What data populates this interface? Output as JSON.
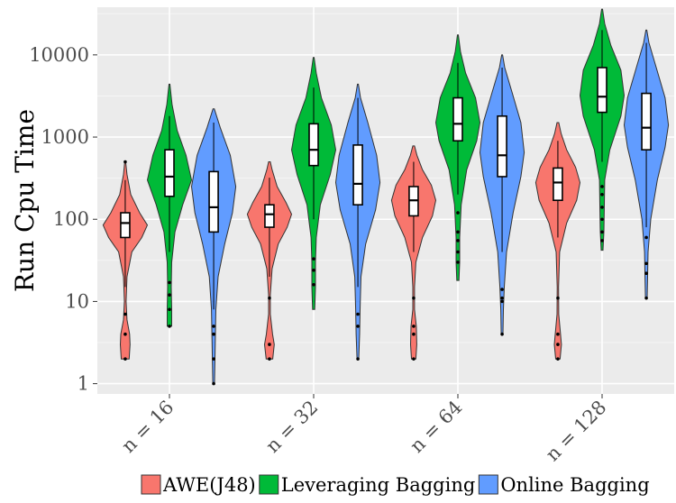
{
  "chart_data": {
    "type": "violin",
    "title": "",
    "xlabel": "",
    "ylabel": "Run Cpu Time",
    "y_scale": "log10",
    "ylim": [
      0.75,
      38000
    ],
    "y_ticks": [
      {
        "value": 1,
        "label": "1"
      },
      {
        "value": 10,
        "label": "10"
      },
      {
        "value": 100,
        "label": "100"
      },
      {
        "value": 1000,
        "label": "1000"
      },
      {
        "value": 10000,
        "label": "10000"
      }
    ],
    "categories": [
      "n = 16",
      "n = 32",
      "n = 64",
      "n = 128"
    ],
    "grid": true,
    "legend_position": "bottom",
    "series": [
      {
        "name": "AWE(J48)",
        "color": "#F8766D",
        "groups": [
          {
            "min": 2,
            "max": 500,
            "q1": 60,
            "median": 90,
            "q3": 120,
            "whisker_low": 15,
            "whisker_high": 300,
            "outliers": [
              2,
              4,
              7,
              500
            ],
            "density": [
              [
                2,
                0.18
              ],
              [
                3,
                0.22
              ],
              [
                4,
                0.2
              ],
              [
                6,
                0.08
              ],
              [
                10,
                0.04
              ],
              [
                20,
                0.08
              ],
              [
                40,
                0.3
              ],
              [
                60,
                0.75
              ],
              [
                85,
                1.0
              ],
              [
                120,
                0.65
              ],
              [
                200,
                0.25
              ],
              [
                350,
                0.08
              ],
              [
                500,
                0.02
              ]
            ]
          },
          {
            "min": 2,
            "max": 500,
            "q1": 80,
            "median": 115,
            "q3": 150,
            "whisker_low": 20,
            "whisker_high": 320,
            "outliers": [
              2,
              3,
              11
            ],
            "density": [
              [
                2,
                0.15
              ],
              [
                3,
                0.22
              ],
              [
                4,
                0.14
              ],
              [
                7,
                0.04
              ],
              [
                12,
                0.04
              ],
              [
                25,
                0.12
              ],
              [
                50,
                0.4
              ],
              [
                80,
                0.8
              ],
              [
                115,
                1.0
              ],
              [
                160,
                0.75
              ],
              [
                250,
                0.35
              ],
              [
                400,
                0.12
              ],
              [
                500,
                0.04
              ]
            ]
          },
          {
            "min": 2,
            "max": 780,
            "q1": 110,
            "median": 170,
            "q3": 250,
            "whisker_low": 40,
            "whisker_high": 500,
            "outliers": [
              2,
              4,
              5,
              11
            ],
            "density": [
              [
                2,
                0.1
              ],
              [
                3,
                0.14
              ],
              [
                5,
                0.12
              ],
              [
                8,
                0.04
              ],
              [
                15,
                0.04
              ],
              [
                30,
                0.1
              ],
              [
                60,
                0.4
              ],
              [
                110,
                0.85
              ],
              [
                170,
                1.0
              ],
              [
                260,
                0.8
              ],
              [
                400,
                0.4
              ],
              [
                600,
                0.15
              ],
              [
                780,
                0.04
              ]
            ]
          },
          {
            "min": 2,
            "max": 1500,
            "q1": 170,
            "median": 280,
            "q3": 420,
            "whisker_low": 60,
            "whisker_high": 900,
            "outliers": [
              2,
              3,
              4,
              11
            ],
            "density": [
              [
                2,
                0.1
              ],
              [
                3,
                0.16
              ],
              [
                4,
                0.12
              ],
              [
                7,
                0.04
              ],
              [
                15,
                0.03
              ],
              [
                40,
                0.08
              ],
              [
                90,
                0.4
              ],
              [
                170,
                0.85
              ],
              [
                280,
                1.0
              ],
              [
                430,
                0.8
              ],
              [
                700,
                0.4
              ],
              [
                1100,
                0.15
              ],
              [
                1500,
                0.04
              ]
            ]
          }
        ]
      },
      {
        "name": "Leveraging Bagging",
        "color": "#00BA38",
        "groups": [
          {
            "min": 5,
            "max": 4400,
            "q1": 190,
            "median": 330,
            "q3": 700,
            "whisker_low": 40,
            "whisker_high": 1800,
            "outliers": [
              5,
              8,
              12,
              17
            ],
            "density": [
              [
                5,
                0.1
              ],
              [
                8,
                0.1
              ],
              [
                15,
                0.08
              ],
              [
                30,
                0.1
              ],
              [
                70,
                0.25
              ],
              [
                150,
                0.6
              ],
              [
                300,
                1.0
              ],
              [
                600,
                0.75
              ],
              [
                1200,
                0.35
              ],
              [
                2500,
                0.12
              ],
              [
                4400,
                0.02
              ]
            ]
          },
          {
            "min": 8,
            "max": 9300,
            "q1": 450,
            "median": 700,
            "q3": 1450,
            "whisker_low": 100,
            "whisker_high": 4000,
            "outliers": [
              16,
              24,
              33
            ],
            "density": [
              [
                8,
                0.05
              ],
              [
                15,
                0.08
              ],
              [
                30,
                0.08
              ],
              [
                60,
                0.12
              ],
              [
                150,
                0.3
              ],
              [
                350,
                0.75
              ],
              [
                700,
                1.0
              ],
              [
                1400,
                0.8
              ],
              [
                3000,
                0.35
              ],
              [
                6000,
                0.12
              ],
              [
                9300,
                0.02
              ]
            ]
          },
          {
            "min": 18,
            "max": 17500,
            "q1": 900,
            "median": 1450,
            "q3": 3000,
            "whisker_low": 200,
            "whisker_high": 8000,
            "outliers": [
              30,
              40,
              55,
              70,
              120
            ],
            "density": [
              [
                18,
                0.05
              ],
              [
                30,
                0.08
              ],
              [
                60,
                0.08
              ],
              [
                150,
                0.15
              ],
              [
                400,
                0.4
              ],
              [
                900,
                0.85
              ],
              [
                1500,
                1.0
              ],
              [
                3000,
                0.8
              ],
              [
                6000,
                0.35
              ],
              [
                11000,
                0.12
              ],
              [
                17500,
                0.02
              ]
            ]
          },
          {
            "min": 42,
            "max": 36000,
            "q1": 2000,
            "median": 3100,
            "q3": 7000,
            "whisker_low": 500,
            "whisker_high": 20000,
            "outliers": [
              55,
              70,
              100,
              140,
              200,
              250
            ],
            "density": [
              [
                42,
                0.04
              ],
              [
                70,
                0.08
              ],
              [
                150,
                0.1
              ],
              [
                300,
                0.12
              ],
              [
                700,
                0.35
              ],
              [
                1800,
                0.85
              ],
              [
                3200,
                1.0
              ],
              [
                6500,
                0.85
              ],
              [
                13000,
                0.4
              ],
              [
                24000,
                0.12
              ],
              [
                36000,
                0.02
              ]
            ]
          }
        ]
      },
      {
        "name": "Online Bagging",
        "color": "#619CFF",
        "groups": [
          {
            "min": 1,
            "max": 2200,
            "q1": 70,
            "median": 140,
            "q3": 380,
            "whisker_low": 8,
            "whisker_high": 1500,
            "outliers": [
              1,
              2,
              4,
              5
            ],
            "density": [
              [
                1,
                0.04
              ],
              [
                2,
                0.06
              ],
              [
                4,
                0.08
              ],
              [
                8,
                0.1
              ],
              [
                20,
                0.2
              ],
              [
                50,
                0.5
              ],
              [
                120,
                0.85
              ],
              [
                250,
                1.0
              ],
              [
                600,
                0.75
              ],
              [
                1300,
                0.3
              ],
              [
                2200,
                0.03
              ]
            ]
          },
          {
            "min": 2,
            "max": 4400,
            "q1": 150,
            "median": 270,
            "q3": 800,
            "whisker_low": 15,
            "whisker_high": 3000,
            "outliers": [
              2,
              5,
              7
            ],
            "density": [
              [
                2,
                0.04
              ],
              [
                4,
                0.08
              ],
              [
                8,
                0.1
              ],
              [
                20,
                0.14
              ],
              [
                50,
                0.35
              ],
              [
                130,
                0.8
              ],
              [
                280,
                1.0
              ],
              [
                600,
                0.85
              ],
              [
                1500,
                0.45
              ],
              [
                3000,
                0.12
              ],
              [
                4400,
                0.02
              ]
            ]
          },
          {
            "min": 4,
            "max": 10000,
            "q1": 330,
            "median": 600,
            "q3": 1800,
            "whisker_low": 40,
            "whisker_high": 7000,
            "outliers": [
              4,
              10,
              11,
              14
            ],
            "density": [
              [
                4,
                0.04
              ],
              [
                8,
                0.06
              ],
              [
                15,
                0.1
              ],
              [
                40,
                0.2
              ],
              [
                120,
                0.5
              ],
              [
                330,
                0.85
              ],
              [
                650,
                1.0
              ],
              [
                1500,
                0.85
              ],
              [
                3500,
                0.45
              ],
              [
                7000,
                0.12
              ],
              [
                10000,
                0.02
              ]
            ]
          },
          {
            "min": 11,
            "max": 20000,
            "q1": 700,
            "median": 1300,
            "q3": 3400,
            "whisker_low": 80,
            "whisker_high": 14000,
            "outliers": [
              11,
              22,
              29,
              60
            ],
            "density": [
              [
                11,
                0.04
              ],
              [
                20,
                0.06
              ],
              [
                40,
                0.08
              ],
              [
                100,
                0.2
              ],
              [
                300,
                0.5
              ],
              [
                750,
                0.85
              ],
              [
                1400,
                1.0
              ],
              [
                3000,
                0.85
              ],
              [
                7000,
                0.45
              ],
              [
                14000,
                0.12
              ],
              [
                20000,
                0.02
              ]
            ]
          }
        ]
      }
    ]
  }
}
